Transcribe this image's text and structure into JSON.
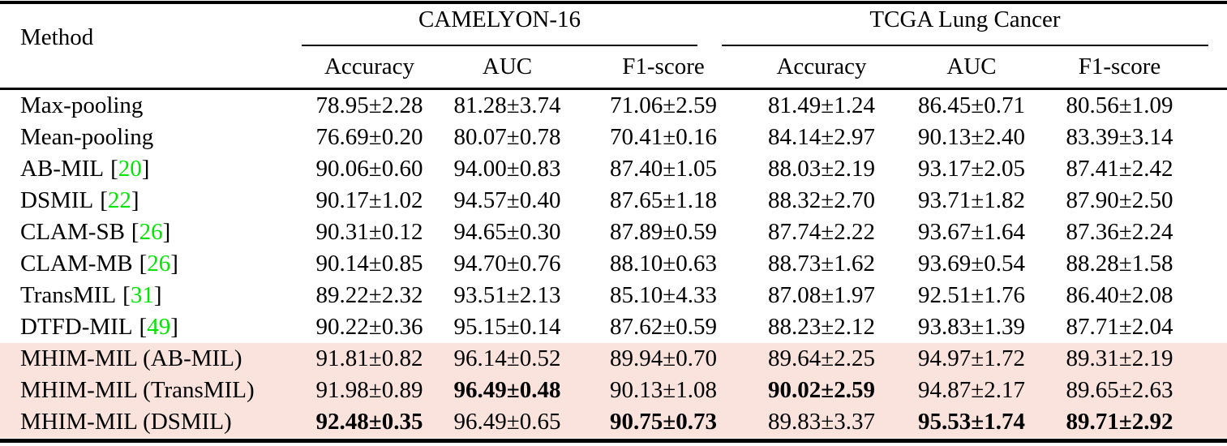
{
  "table": {
    "method_header": "Method",
    "groups": [
      {
        "label": "CAMELYON-16"
      },
      {
        "label": "TCGA Lung Cancer"
      }
    ],
    "sub_headers": [
      "Accuracy",
      "AUC",
      "F1-score"
    ],
    "punct": {
      "open_bracket": "[",
      "close_bracket": "]",
      "plus_minus": "±"
    },
    "colors": {
      "highlight_row": "#f9e3dc",
      "citation_green": "#00e600",
      "text": "#000000"
    },
    "rows": [
      {
        "method": "Max-pooling",
        "cite": null,
        "highlight": false,
        "bold": [],
        "values": [
          "78.95±2.28",
          "81.28±3.74",
          "71.06±2.59",
          "81.49±1.24",
          "86.45±0.71",
          "80.56±1.09"
        ]
      },
      {
        "method": "Mean-pooling",
        "cite": null,
        "highlight": false,
        "bold": [],
        "values": [
          "76.69±0.20",
          "80.07±0.78",
          "70.41±0.16",
          "84.14±2.97",
          "90.13±2.40",
          "83.39±3.14"
        ]
      },
      {
        "method": "AB-MIL",
        "cite": "20",
        "highlight": false,
        "bold": [],
        "values": [
          "90.06±0.60",
          "94.00±0.83",
          "87.40±1.05",
          "88.03±2.19",
          "93.17±2.05",
          "87.41±2.42"
        ]
      },
      {
        "method": "DSMIL",
        "cite": "22",
        "highlight": false,
        "bold": [],
        "values": [
          "90.17±1.02",
          "94.57±0.40",
          "87.65±1.18",
          "88.32±2.70",
          "93.71±1.82",
          "87.90±2.50"
        ]
      },
      {
        "method": "CLAM-SB",
        "cite": "26",
        "highlight": false,
        "bold": [],
        "values": [
          "90.31±0.12",
          "94.65±0.30",
          "87.89±0.59",
          "87.74±2.22",
          "93.67±1.64",
          "87.36±2.24"
        ]
      },
      {
        "method": "CLAM-MB",
        "cite": "26",
        "highlight": false,
        "bold": [],
        "values": [
          "90.14±0.85",
          "94.70±0.76",
          "88.10±0.63",
          "88.73±1.62",
          "93.69±0.54",
          "88.28±1.58"
        ]
      },
      {
        "method": "TransMIL",
        "cite": "31",
        "highlight": false,
        "bold": [],
        "values": [
          "89.22±2.32",
          "93.51±2.13",
          "85.10±4.33",
          "87.08±1.97",
          "92.51±1.76",
          "86.40±2.08"
        ]
      },
      {
        "method": "DTFD-MIL",
        "cite": "49",
        "highlight": false,
        "bold": [],
        "values": [
          "90.22±0.36",
          "95.15±0.14",
          "87.62±0.59",
          "88.23±2.12",
          "93.83±1.39",
          "87.71±2.04"
        ]
      },
      {
        "method": "MHIM-MIL (AB-MIL)",
        "cite": null,
        "highlight": true,
        "bold": [],
        "values": [
          "91.81±0.82",
          "96.14±0.52",
          "89.94±0.70",
          "89.64±2.25",
          "94.97±1.72",
          "89.31±2.19"
        ]
      },
      {
        "method": "MHIM-MIL (TransMIL)",
        "cite": null,
        "highlight": true,
        "bold": [
          1,
          3
        ],
        "values": [
          "91.98±0.89",
          "96.49±0.48",
          "90.13±1.08",
          "90.02±2.59",
          "94.87±2.17",
          "89.65±2.63"
        ]
      },
      {
        "method": "MHIM-MIL (DSMIL)",
        "cite": null,
        "highlight": true,
        "bold": [
          0,
          2,
          4,
          5
        ],
        "values": [
          "92.48±0.35",
          "96.49±0.65",
          "90.75±0.73",
          "89.83±3.37",
          "95.53±1.74",
          "89.71±2.92"
        ]
      }
    ]
  }
}
